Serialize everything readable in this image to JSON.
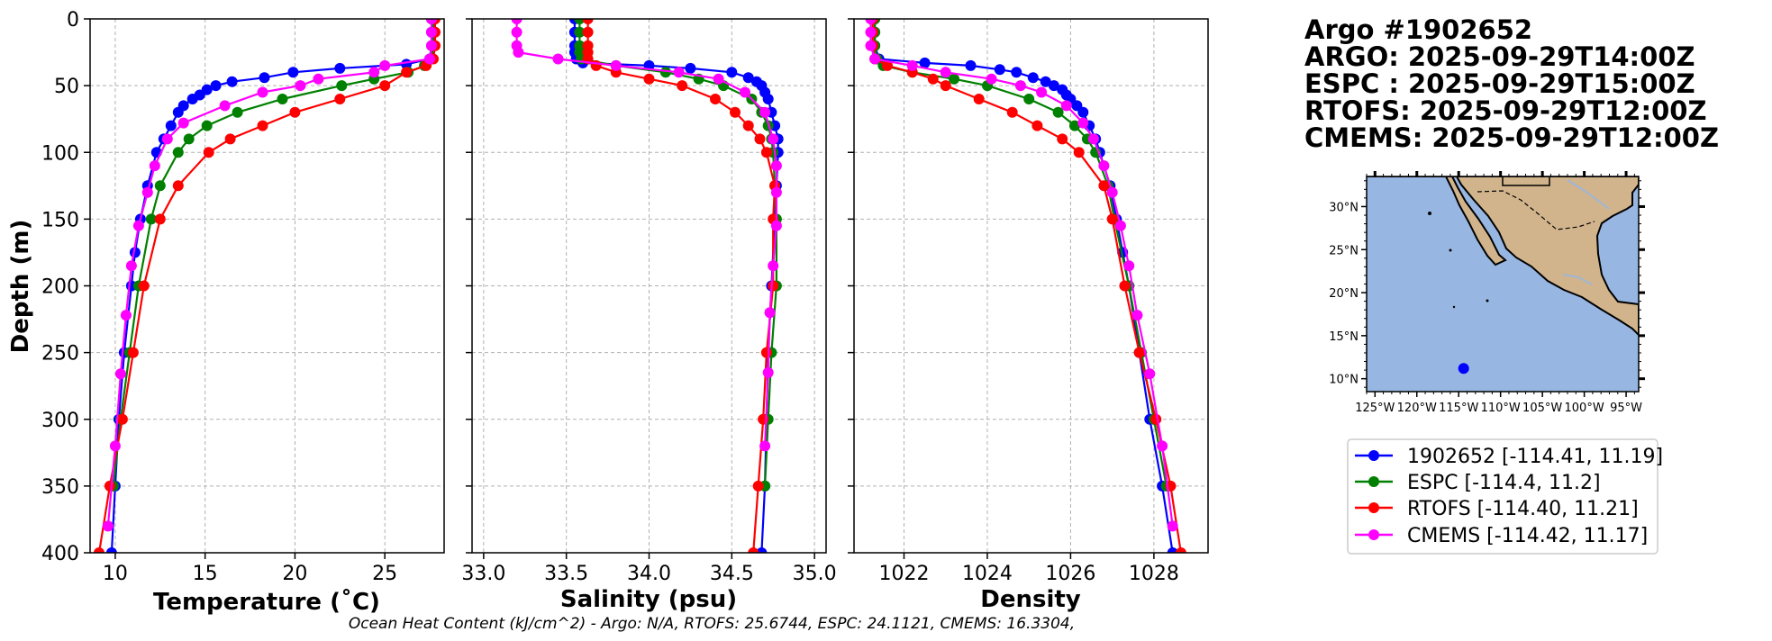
{
  "header": {
    "lines": [
      "Argo #1902652",
      "ARGO: 2025-09-29T14:00Z",
      "ESPC : 2025-09-29T15:00Z",
      "RTOFS: 2025-09-29T12:00Z",
      "CMEMS: 2025-09-29T12:00Z"
    ]
  },
  "footer": {
    "text": "Ocean Heat Content (kJ/cm^2) - Argo: N/A,  RTOFS: 25.6744,  ESPC: 24.1121,  CMEMS: 16.3304,"
  },
  "legend": {
    "entries": [
      {
        "label": "1902652 [-114.41, 11.19]",
        "color": "#0000ff"
      },
      {
        "label": "ESPC [-114.4, 11.2]",
        "color": "#008000"
      },
      {
        "label": "RTOFS [-114.40, 11.21]",
        "color": "#ff0000"
      },
      {
        "label": "CMEMS [-114.42, 11.17]",
        "color": "#ff00ff"
      }
    ]
  },
  "map": {
    "lat_labels": [
      "30°N",
      "25°N",
      "20°N",
      "15°N",
      "10°N"
    ],
    "lon_labels": [
      "125°W",
      "120°W",
      "115°W",
      "110°W",
      "105°W",
      "100°W",
      "95°W"
    ],
    "extent": {
      "lon": [
        -126,
        -93.5
      ],
      "lat": [
        8.5,
        33.5
      ]
    },
    "float_position": {
      "lon": -114.41,
      "lat": 11.19,
      "color": "#0000ff"
    },
    "ocean_color": "#97b6e1",
    "land_color": "#d2b48c"
  },
  "chart_data": [
    {
      "type": "line",
      "title": "",
      "xlabel": "Temperature (˚C)",
      "ylabel": "Depth (m)",
      "xlim": [
        8.6,
        28.3
      ],
      "ylim": [
        400,
        0
      ],
      "xticks": [
        10,
        15,
        20,
        25
      ],
      "yticks": [
        0,
        50,
        100,
        150,
        200,
        250,
        300,
        350,
        400
      ],
      "grid": true,
      "series": [
        {
          "name": "1902652",
          "color": "#0000ff",
          "depth": [
            0,
            10,
            20,
            30,
            34,
            37,
            40,
            44,
            47,
            50,
            53,
            57,
            60,
            65,
            70,
            80,
            90,
            100,
            125,
            150,
            175,
            200,
            250,
            300,
            350,
            400
          ],
          "values": [
            27.6,
            27.6,
            27.6,
            27.5,
            26.2,
            22.5,
            19.9,
            18.3,
            16.5,
            15.6,
            15.1,
            14.7,
            14.3,
            13.8,
            13.5,
            13.1,
            12.7,
            12.3,
            11.8,
            11.4,
            11.1,
            10.9,
            10.5,
            10.2,
            10.0,
            9.8
          ]
        },
        {
          "name": "ESPC",
          "color": "#008000",
          "depth": [
            0,
            10,
            20,
            30,
            35,
            40,
            45,
            50,
            60,
            70,
            80,
            90,
            100,
            125,
            150,
            200,
            250,
            300,
            350
          ],
          "values": [
            27.7,
            27.7,
            27.7,
            27.6,
            27.2,
            26.3,
            24.4,
            22.6,
            19.3,
            16.8,
            15.1,
            14.1,
            13.5,
            12.5,
            12.0,
            11.3,
            10.8,
            10.3,
            9.9
          ]
        },
        {
          "name": "RTOFS",
          "color": "#ff0000",
          "depth": [
            0,
            10,
            20,
            30,
            35,
            40,
            50,
            60,
            70,
            80,
            90,
            100,
            125,
            150,
            200,
            250,
            300,
            350,
            400
          ],
          "values": [
            27.8,
            27.8,
            27.8,
            27.7,
            27.3,
            26.2,
            25.0,
            22.5,
            20.0,
            18.2,
            16.4,
            15.2,
            13.5,
            12.5,
            11.6,
            11.0,
            10.4,
            9.7,
            9.1
          ]
        },
        {
          "name": "CMEMS",
          "color": "#ff00ff",
          "depth": [
            0,
            10,
            20,
            30,
            35,
            40,
            45,
            50,
            55,
            65,
            78,
            90,
            110,
            130,
            155,
            185,
            222,
            266,
            320,
            380
          ],
          "values": [
            27.6,
            27.6,
            27.6,
            27.5,
            25.0,
            24.4,
            21.3,
            20.3,
            18.2,
            16.1,
            13.8,
            12.9,
            12.2,
            11.8,
            11.3,
            10.9,
            10.6,
            10.3,
            10.0,
            9.6
          ]
        }
      ]
    },
    {
      "type": "line",
      "title": "",
      "xlabel": "Salinity (psu)",
      "ylabel": "",
      "xlim": [
        32.93,
        35.07
      ],
      "ylim": [
        400,
        0
      ],
      "xticks": [
        33.0,
        33.5,
        34.0,
        34.5,
        35.0
      ],
      "xtick_labels": [
        "33.0",
        "33.5",
        "34.0",
        "34.5",
        "35.0"
      ],
      "yticks": [
        0,
        50,
        100,
        150,
        200,
        250,
        300,
        350,
        400
      ],
      "grid": true,
      "series": [
        {
          "name": "1902652",
          "color": "#0000ff",
          "depth": [
            0,
            10,
            20,
            25,
            30,
            33,
            35,
            37,
            40,
            44,
            47,
            50,
            55,
            60,
            70,
            80,
            90,
            100,
            125,
            150,
            200,
            250,
            300,
            350,
            400
          ],
          "values": [
            33.55,
            33.55,
            33.55,
            33.55,
            33.56,
            33.6,
            34.0,
            34.25,
            34.5,
            34.6,
            34.65,
            34.68,
            34.7,
            34.72,
            34.74,
            34.76,
            34.78,
            34.78,
            34.77,
            34.76,
            34.74,
            34.72,
            34.71,
            34.7,
            34.68
          ]
        },
        {
          "name": "ESPC",
          "color": "#008000",
          "depth": [
            0,
            10,
            20,
            25,
            30,
            35,
            40,
            45,
            50,
            60,
            70,
            80,
            90,
            100,
            125,
            150,
            200,
            250,
            300,
            350
          ],
          "values": [
            33.58,
            33.58,
            33.58,
            33.58,
            33.59,
            33.8,
            34.1,
            34.3,
            34.45,
            34.62,
            34.68,
            34.72,
            34.74,
            34.75,
            34.76,
            34.77,
            34.77,
            34.74,
            34.72,
            34.7
          ]
        },
        {
          "name": "RTOFS",
          "color": "#ff0000",
          "depth": [
            0,
            10,
            20,
            25,
            30,
            35,
            40,
            45,
            50,
            60,
            70,
            80,
            90,
            100,
            125,
            150,
            200,
            250,
            300,
            350,
            400
          ],
          "values": [
            33.63,
            33.63,
            33.63,
            33.63,
            33.63,
            33.68,
            33.8,
            34.0,
            34.2,
            34.4,
            34.52,
            34.6,
            34.67,
            34.71,
            34.76,
            34.75,
            34.75,
            34.71,
            34.69,
            34.66,
            34.63
          ]
        },
        {
          "name": "CMEMS",
          "color": "#ff00ff",
          "depth": [
            0,
            10,
            20,
            25,
            30,
            35,
            40,
            45,
            55,
            70,
            90,
            110,
            130,
            155,
            185,
            220,
            265,
            320
          ],
          "values": [
            33.2,
            33.2,
            33.2,
            33.21,
            33.45,
            33.8,
            34.18,
            34.42,
            34.58,
            34.7,
            34.75,
            34.77,
            34.77,
            34.77,
            34.75,
            34.73,
            34.72,
            34.7
          ]
        }
      ]
    },
    {
      "type": "line",
      "title": "",
      "xlabel": "Density",
      "ylabel": "",
      "xlim": [
        1020.8,
        1029.3
      ],
      "ylim": [
        400,
        0
      ],
      "xticks": [
        1022,
        1024,
        1026,
        1028
      ],
      "yticks": [
        0,
        50,
        100,
        150,
        200,
        250,
        300,
        350,
        400
      ],
      "grid": true,
      "series": [
        {
          "name": "1902652",
          "color": "#0000ff",
          "depth": [
            0,
            10,
            20,
            30,
            33,
            35,
            38,
            40,
            44,
            47,
            50,
            53,
            57,
            60,
            65,
            70,
            80,
            90,
            100,
            125,
            150,
            175,
            200,
            250,
            300,
            350,
            400
          ],
          "values": [
            1021.3,
            1021.3,
            1021.3,
            1021.4,
            1022.5,
            1023.6,
            1024.3,
            1024.7,
            1025.1,
            1025.4,
            1025.6,
            1025.8,
            1025.9,
            1026.0,
            1026.15,
            1026.3,
            1026.45,
            1026.6,
            1026.7,
            1026.95,
            1027.1,
            1027.25,
            1027.4,
            1027.65,
            1027.9,
            1028.2,
            1028.45
          ]
        },
        {
          "name": "ESPC",
          "color": "#008000",
          "depth": [
            0,
            10,
            20,
            30,
            35,
            40,
            45,
            50,
            60,
            70,
            80,
            90,
            100,
            125,
            150,
            200,
            250,
            300,
            350
          ],
          "values": [
            1021.3,
            1021.3,
            1021.3,
            1021.35,
            1021.5,
            1022.2,
            1023.2,
            1024.0,
            1025.0,
            1025.7,
            1026.1,
            1026.4,
            1026.6,
            1026.9,
            1027.05,
            1027.4,
            1027.7,
            1028.0,
            1028.3
          ]
        },
        {
          "name": "RTOFS",
          "color": "#ff0000",
          "depth": [
            0,
            10,
            20,
            30,
            35,
            40,
            45,
            50,
            60,
            70,
            80,
            90,
            100,
            125,
            150,
            200,
            250,
            300,
            350,
            400
          ],
          "values": [
            1021.25,
            1021.25,
            1021.25,
            1021.3,
            1021.6,
            1022.2,
            1022.7,
            1023.0,
            1023.8,
            1024.6,
            1025.2,
            1025.8,
            1026.2,
            1026.8,
            1027.0,
            1027.3,
            1027.65,
            1028.05,
            1028.4,
            1028.65
          ]
        },
        {
          "name": "CMEMS",
          "color": "#ff00ff",
          "depth": [
            0,
            10,
            20,
            30,
            35,
            40,
            45,
            50,
            55,
            65,
            78,
            90,
            110,
            130,
            155,
            185,
            222,
            266,
            320,
            380
          ],
          "values": [
            1021.2,
            1021.2,
            1021.2,
            1021.3,
            1022.2,
            1023.0,
            1024.1,
            1024.8,
            1025.3,
            1025.9,
            1026.3,
            1026.55,
            1026.8,
            1027.0,
            1027.2,
            1027.4,
            1027.6,
            1027.9,
            1028.2,
            1028.45
          ]
        }
      ]
    }
  ]
}
